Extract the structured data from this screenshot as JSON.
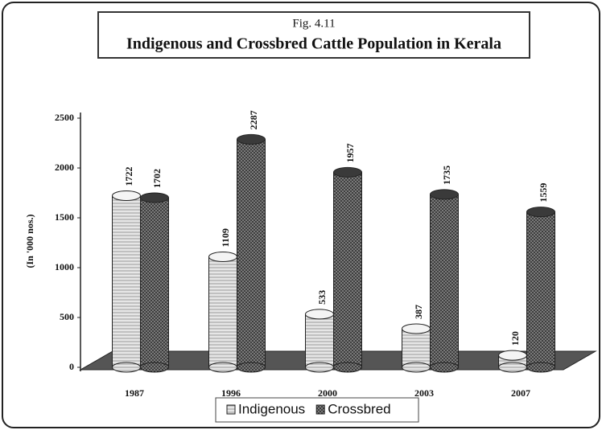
{
  "chart_data": {
    "type": "bar",
    "figure_label": "Fig. 4.11",
    "title": "Indigenous and Crossbred Cattle Population in Kerala",
    "y_label": "(In '000 nos.)",
    "categories": [
      "1987",
      "1996",
      "2000",
      "2003",
      "2007"
    ],
    "series": [
      {
        "name": "Indigenous",
        "color": "#e6e6e6",
        "values": [
          1722,
          1109,
          533,
          387,
          120
        ]
      },
      {
        "name": "Crossbred",
        "color": "#2e2e2e",
        "values": [
          1702,
          2287,
          1957,
          1735,
          1559
        ]
      }
    ],
    "ylim": [
      0,
      2500
    ],
    "yticks": [
      0,
      500,
      1000,
      1500,
      2000,
      2500
    ],
    "legend": "bottom"
  }
}
